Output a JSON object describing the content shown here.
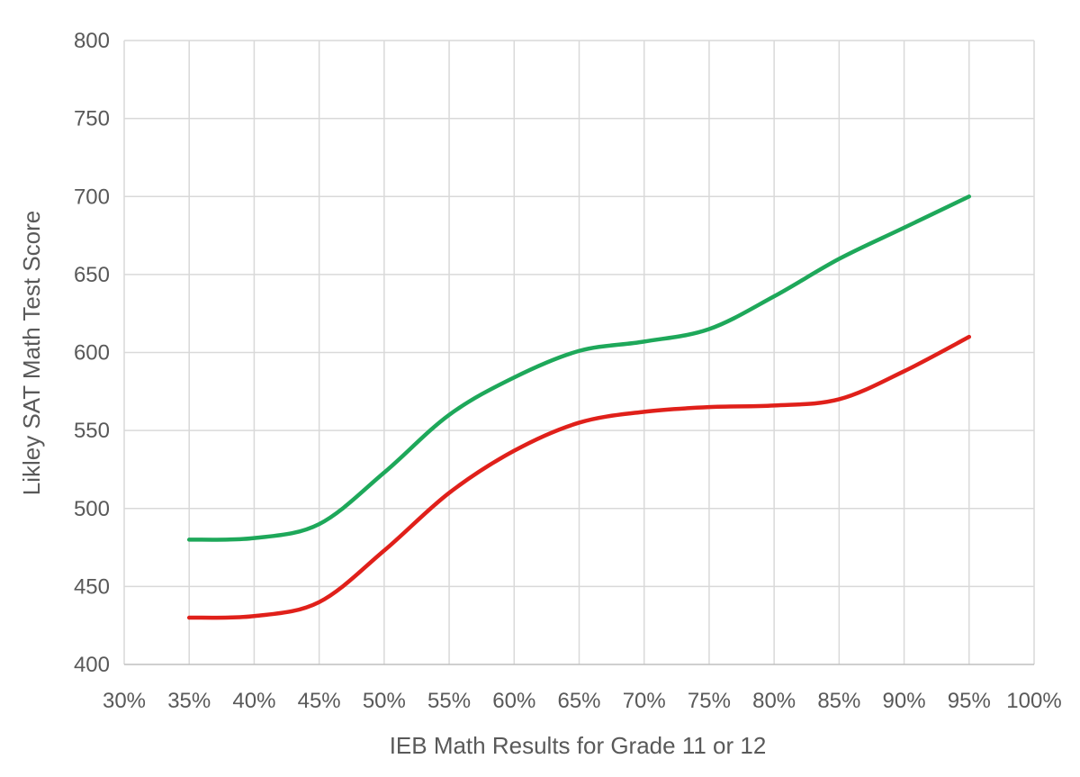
{
  "chart_data": {
    "type": "line",
    "title": "",
    "xlabel": "IEB Math Results for Grade 11 or 12",
    "ylabel": "Likley SAT Math Test Score",
    "xlim": [
      30,
      100
    ],
    "ylim": [
      400,
      800
    ],
    "x_ticks": [
      "30%",
      "35%",
      "40%",
      "45%",
      "50%",
      "55%",
      "60%",
      "65%",
      "70%",
      "75%",
      "80%",
      "85%",
      "90%",
      "95%",
      "100%"
    ],
    "y_ticks": [
      "400",
      "450",
      "500",
      "550",
      "600",
      "650",
      "700",
      "750",
      "800"
    ],
    "grid": true,
    "legend": "none",
    "smooth": true,
    "x": [
      35,
      40,
      45,
      50,
      55,
      60,
      65,
      70,
      75,
      80,
      85,
      90,
      95
    ],
    "series": [
      {
        "color": "#1ea85a",
        "values": [
          480,
          481,
          490,
          523,
          560,
          584,
          601,
          607,
          615,
          636,
          660,
          680,
          700
        ]
      },
      {
        "color": "#e0201a",
        "values": [
          430,
          431,
          440,
          473,
          510,
          537,
          555,
          562,
          565,
          566,
          570,
          588,
          610
        ]
      }
    ]
  }
}
